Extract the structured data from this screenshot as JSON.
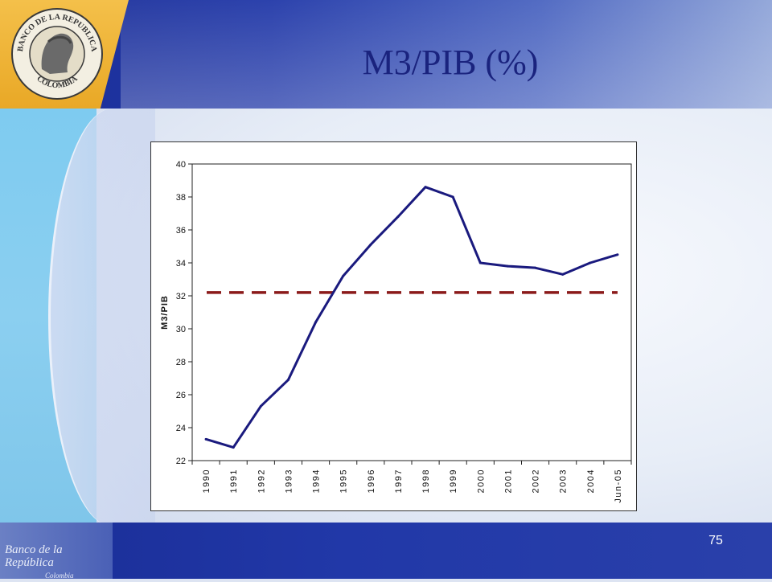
{
  "slide": {
    "title": "M3/PIB (%)",
    "page_number": "75"
  },
  "branding": {
    "seal_top_text": "BANCO DE LA REPUBLICA",
    "seal_bottom_text": "COLOMBIA",
    "footer_logo_line1": "Banco de la República",
    "footer_logo_line2": "Colombia"
  },
  "colors": {
    "title": "#1a237e",
    "series_line": "#1a1a7e",
    "average_line": "#8b1a1a",
    "header_blue": "#2138a8",
    "logo_gold": "#f0b63a"
  },
  "chart_data": {
    "type": "line",
    "categories": [
      "1990",
      "1991",
      "1992",
      "1993",
      "1994",
      "1995",
      "1996",
      "1997",
      "1998",
      "1999",
      "2000",
      "2001",
      "2002",
      "2003",
      "2004",
      "Jun-05"
    ],
    "series": [
      {
        "values": [
          23.3,
          22.8,
          25.3,
          26.9,
          30.4,
          33.2,
          35.1,
          36.8,
          38.6,
          38.0,
          34.0,
          33.8,
          33.7,
          33.3,
          34.0,
          34.5
        ]
      }
    ],
    "reference_line": {
      "value": 32.2,
      "style": "dashed"
    },
    "ylabel": "M3/PIB",
    "xlabel": "",
    "ylim": [
      22,
      40
    ],
    "yticks": [
      22,
      24,
      26,
      28,
      30,
      32,
      34,
      36,
      38,
      40
    ],
    "grid": false,
    "legend": "none"
  }
}
